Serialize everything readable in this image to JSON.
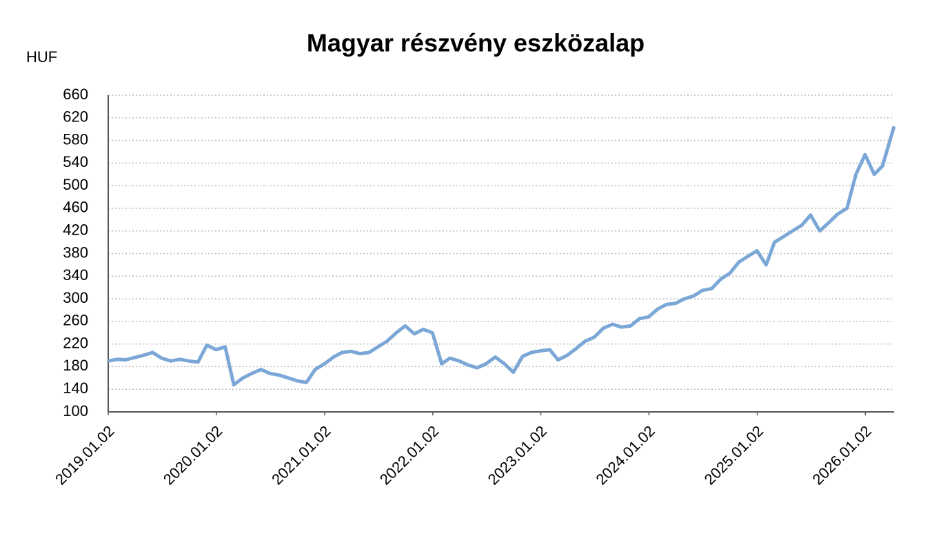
{
  "chart_data": {
    "type": "line",
    "title": "Magyar részvény eszközalap",
    "y_axis_label": "HUF",
    "x": [
      "2019.01.02",
      "2019.02.01",
      "2019.03.01",
      "2019.04.01",
      "2019.05.01",
      "2019.06.01",
      "2019.07.01",
      "2019.08.01",
      "2019.09.01",
      "2019.10.01",
      "2019.11.01",
      "2019.12.01",
      "2020.01.01",
      "2020.02.01",
      "2020.03.01",
      "2020.04.01",
      "2020.05.01",
      "2020.06.01",
      "2020.07.01",
      "2020.08.01",
      "2020.09.01",
      "2020.10.01",
      "2020.11.01",
      "2020.12.01",
      "2021.01.01",
      "2021.02.01",
      "2021.03.01",
      "2021.04.01",
      "2021.05.01",
      "2021.06.01",
      "2021.07.01",
      "2021.08.01",
      "2021.09.01",
      "2021.10.01",
      "2021.11.01",
      "2021.12.01",
      "2022.01.01",
      "2022.02.01",
      "2022.03.01",
      "2022.04.01",
      "2022.05.01",
      "2022.06.01",
      "2022.07.01",
      "2022.08.01",
      "2022.09.01",
      "2022.10.01",
      "2022.11.01",
      "2022.12.01",
      "2023.01.01",
      "2023.02.01",
      "2023.03.01",
      "2023.04.01",
      "2023.05.01",
      "2023.06.01",
      "2023.07.01",
      "2023.08.01",
      "2023.09.01",
      "2023.10.01",
      "2023.11.01",
      "2023.12.01",
      "2024.01.01",
      "2024.02.01",
      "2024.03.01",
      "2024.04.01",
      "2024.05.01",
      "2024.06.01",
      "2024.07.01",
      "2024.08.01",
      "2024.09.01",
      "2024.10.01",
      "2024.11.01",
      "2024.12.01",
      "2025.01.01",
      "2025.02.01",
      "2025.03.01",
      "2025.04.01",
      "2025.05.01",
      "2025.06.01",
      "2025.07.01",
      "2025.08.01",
      "2025.09.01",
      "2025.10.01",
      "2025.11.01",
      "2025.12.01",
      "2026.01.01",
      "2026.02.01",
      "2026.03.01",
      "2026.04.09"
    ],
    "series": [
      {
        "name": "Magyar részvény eszközalap",
        "color": "#7ba7d7",
        "values": [
          190,
          193,
          192,
          196,
          200,
          205,
          195,
          190,
          193,
          190,
          188,
          218,
          210,
          215,
          148,
          160,
          168,
          175,
          168,
          165,
          160,
          155,
          152,
          175,
          185,
          197,
          205,
          207,
          203,
          205,
          215,
          225,
          240,
          252,
          238,
          246,
          240,
          185,
          195,
          190,
          183,
          178,
          185,
          197,
          185,
          170,
          198,
          205,
          208,
          210,
          192,
          200,
          212,
          225,
          232,
          248,
          255,
          250,
          252,
          265,
          268,
          282,
          290,
          292,
          300,
          305,
          315,
          318,
          335,
          345,
          365,
          375,
          385,
          360,
          400,
          410,
          420,
          430,
          448,
          420,
          435,
          450,
          460,
          520,
          555,
          520,
          535,
          605
        ]
      }
    ],
    "xlim": [
      "2019.01.02",
      "2026.04.09"
    ],
    "xticks": [
      "2019.01.02",
      "2020.01.02",
      "2021.01.02",
      "2022.01.02",
      "2023.01.02",
      "2024.01.02",
      "2025.01.02",
      "2026.01.02"
    ],
    "ylim": [
      100,
      660
    ],
    "yticks": [
      100,
      140,
      180,
      220,
      260,
      300,
      340,
      380,
      420,
      460,
      500,
      540,
      580,
      620,
      660
    ],
    "grid": true
  }
}
